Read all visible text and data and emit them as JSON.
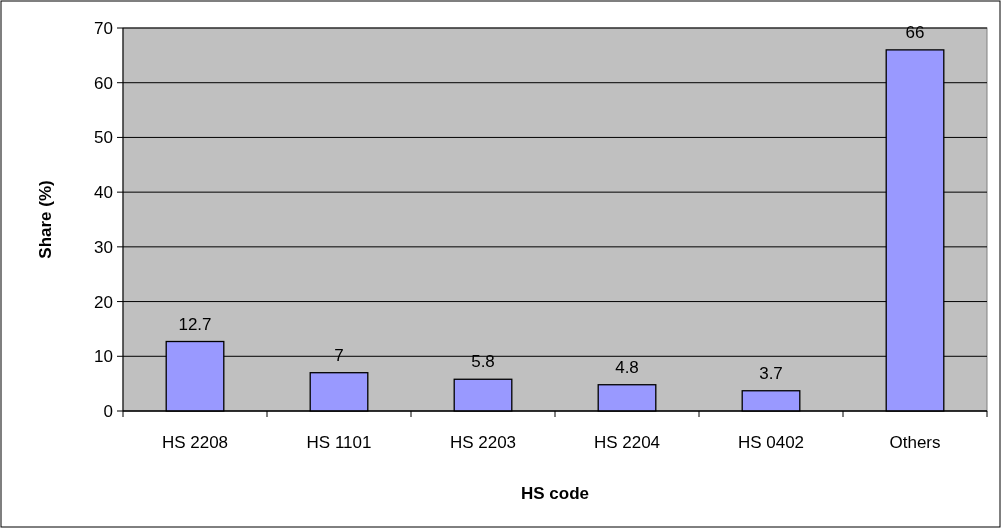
{
  "chart_data": {
    "type": "bar",
    "xlabel": "HS code",
    "ylabel": "Share (%)",
    "categories": [
      "HS 2208",
      "HS 1101",
      "HS 2203",
      "HS 2204",
      "HS 0402",
      "Others"
    ],
    "values": [
      12.7,
      7,
      5.8,
      4.8,
      3.7,
      66
    ],
    "color": "#9999ff",
    "ylim": [
      0,
      70
    ],
    "yticks": [
      0,
      10,
      20,
      30,
      40,
      50,
      60,
      70
    ],
    "grid": "y",
    "data_labels": true
  }
}
